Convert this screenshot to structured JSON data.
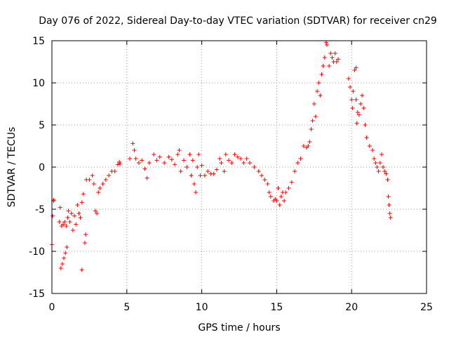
{
  "chart_data": {
    "type": "scatter",
    "title": "Day 076 of 2022, Sidereal Day-to-day VTEC variation (SDTVAR) for receiver cn29",
    "xlabel": "GPS time / hours",
    "ylabel": "SDTVAR / TECUs",
    "xlim": [
      0,
      25
    ],
    "ylim": [
      -15,
      15
    ],
    "xticks": [
      0,
      5,
      10,
      15,
      20,
      25
    ],
    "yticks": [
      -15,
      -10,
      -5,
      0,
      5,
      10,
      15
    ],
    "grid": true,
    "marker": "+",
    "color": "#ff0000",
    "series": [
      {
        "name": "SDTVAR",
        "points": [
          [
            0.0,
            -9.2
          ],
          [
            0.05,
            -5.8
          ],
          [
            0.1,
            -4.0
          ],
          [
            0.12,
            -3.9
          ],
          [
            0.5,
            -6.5
          ],
          [
            0.55,
            -4.8
          ],
          [
            0.6,
            -12.0
          ],
          [
            0.65,
            -7.0
          ],
          [
            0.7,
            -11.5
          ],
          [
            0.75,
            -6.8
          ],
          [
            0.8,
            -10.8
          ],
          [
            0.85,
            -6.5
          ],
          [
            0.9,
            -10.2
          ],
          [
            0.95,
            -7.0
          ],
          [
            1.0,
            -9.5
          ],
          [
            1.05,
            -6.0
          ],
          [
            1.1,
            -5.2
          ],
          [
            1.2,
            -6.5
          ],
          [
            1.3,
            -5.5
          ],
          [
            1.4,
            -7.5
          ],
          [
            1.5,
            -5.8
          ],
          [
            1.6,
            -6.8
          ],
          [
            1.7,
            -4.5
          ],
          [
            1.8,
            -5.5
          ],
          [
            1.9,
            -6.0
          ],
          [
            2.0,
            -12.2
          ],
          [
            2.0,
            -4.2
          ],
          [
            2.1,
            -3.2
          ],
          [
            2.2,
            -9.0
          ],
          [
            2.25,
            -8.0
          ],
          [
            2.3,
            -1.5
          ],
          [
            2.5,
            -1.5
          ],
          [
            2.7,
            -1.0
          ],
          [
            2.8,
            -2.0
          ],
          [
            2.9,
            -5.2
          ],
          [
            3.0,
            -5.5
          ],
          [
            3.1,
            -3.0
          ],
          [
            3.2,
            -2.5
          ],
          [
            3.4,
            -2.0
          ],
          [
            3.6,
            -1.5
          ],
          [
            3.8,
            -1.0
          ],
          [
            4.0,
            -0.5
          ],
          [
            4.2,
            -0.5
          ],
          [
            4.4,
            0.3
          ],
          [
            4.5,
            0.6
          ],
          [
            4.55,
            0.4
          ],
          [
            5.2,
            1.0
          ],
          [
            5.4,
            2.8
          ],
          [
            5.5,
            2.0
          ],
          [
            5.6,
            1.0
          ],
          [
            5.8,
            0.5
          ],
          [
            6.0,
            0.8
          ],
          [
            6.2,
            -0.2
          ],
          [
            6.35,
            -1.3
          ],
          [
            6.5,
            0.5
          ],
          [
            6.8,
            1.5
          ],
          [
            7.0,
            0.8
          ],
          [
            7.2,
            1.2
          ],
          [
            7.5,
            0.5
          ],
          [
            7.8,
            1.2
          ],
          [
            8.0,
            0.9
          ],
          [
            8.2,
            0.3
          ],
          [
            8.4,
            1.5
          ],
          [
            8.5,
            2.0
          ],
          [
            8.6,
            -0.5
          ],
          [
            8.8,
            0.8
          ],
          [
            9.0,
            0.0
          ],
          [
            9.2,
            1.5
          ],
          [
            9.3,
            -1.0
          ],
          [
            9.4,
            0.8
          ],
          [
            9.5,
            -2.0
          ],
          [
            9.6,
            -3.0
          ],
          [
            9.7,
            0.0
          ],
          [
            9.8,
            1.5
          ],
          [
            9.9,
            -1.0
          ],
          [
            10.0,
            0.2
          ],
          [
            10.2,
            -1.0
          ],
          [
            10.4,
            -0.5
          ],
          [
            10.6,
            -0.8
          ],
          [
            10.8,
            -0.8
          ],
          [
            11.0,
            -0.3
          ],
          [
            11.2,
            1.0
          ],
          [
            11.3,
            0.5
          ],
          [
            11.5,
            -0.5
          ],
          [
            11.6,
            1.5
          ],
          [
            11.8,
            0.8
          ],
          [
            12.0,
            0.5
          ],
          [
            12.2,
            1.5
          ],
          [
            12.4,
            1.2
          ],
          [
            12.6,
            1.0
          ],
          [
            12.8,
            0.5
          ],
          [
            13.0,
            1.0
          ],
          [
            13.2,
            0.5
          ],
          [
            13.5,
            0.0
          ],
          [
            13.8,
            -0.5
          ],
          [
            14.0,
            -1.0
          ],
          [
            14.2,
            -1.5
          ],
          [
            14.4,
            -2.0
          ],
          [
            14.5,
            -3.0
          ],
          [
            14.6,
            -3.5
          ],
          [
            14.8,
            -4.0
          ],
          [
            14.9,
            -3.8
          ],
          [
            15.0,
            -4.0
          ],
          [
            15.1,
            -2.5
          ],
          [
            15.2,
            -4.5
          ],
          [
            15.3,
            -3.5
          ],
          [
            15.4,
            -3.0
          ],
          [
            15.5,
            -4.0
          ],
          [
            15.6,
            -3.0
          ],
          [
            15.8,
            -2.5
          ],
          [
            16.0,
            -1.8
          ],
          [
            16.2,
            -0.5
          ],
          [
            16.4,
            0.5
          ],
          [
            16.6,
            1.0
          ],
          [
            16.8,
            2.5
          ],
          [
            17.0,
            2.3
          ],
          [
            17.1,
            2.5
          ],
          [
            17.2,
            3.0
          ],
          [
            17.3,
            4.5
          ],
          [
            17.4,
            5.5
          ],
          [
            17.5,
            7.5
          ],
          [
            17.6,
            6.0
          ],
          [
            17.7,
            9.0
          ],
          [
            17.8,
            10.0
          ],
          [
            17.9,
            8.5
          ],
          [
            18.0,
            11.0
          ],
          [
            18.1,
            12.0
          ],
          [
            18.2,
            13.0
          ],
          [
            18.3,
            14.8
          ],
          [
            18.35,
            14.5
          ],
          [
            18.5,
            12.0
          ],
          [
            18.6,
            13.5
          ],
          [
            18.7,
            13.0
          ],
          [
            18.8,
            12.5
          ],
          [
            18.9,
            13.5
          ],
          [
            19.0,
            12.5
          ],
          [
            19.1,
            12.8
          ],
          [
            19.8,
            10.5
          ],
          [
            19.9,
            9.5
          ],
          [
            20.0,
            8.0
          ],
          [
            20.05,
            7.0
          ],
          [
            20.1,
            9.0
          ],
          [
            20.2,
            11.5
          ],
          [
            20.3,
            11.8
          ],
          [
            20.3,
            8.0
          ],
          [
            20.35,
            5.2
          ],
          [
            20.4,
            6.5
          ],
          [
            20.5,
            6.2
          ],
          [
            20.6,
            7.5
          ],
          [
            20.7,
            8.5
          ],
          [
            20.8,
            7.0
          ],
          [
            20.9,
            5.0
          ],
          [
            21.0,
            3.5
          ],
          [
            21.2,
            2.5
          ],
          [
            21.4,
            2.0
          ],
          [
            21.5,
            1.0
          ],
          [
            21.6,
            0.5
          ],
          [
            21.7,
            0.0
          ],
          [
            21.8,
            -0.5
          ],
          [
            21.9,
            0.5
          ],
          [
            22.0,
            1.5
          ],
          [
            22.1,
            0.0
          ],
          [
            22.2,
            -0.5
          ],
          [
            22.3,
            -0.8
          ],
          [
            22.4,
            -1.5
          ],
          [
            22.45,
            -3.5
          ],
          [
            22.5,
            -4.5
          ],
          [
            22.55,
            -5.5
          ],
          [
            22.6,
            -6.0
          ]
        ]
      }
    ]
  }
}
